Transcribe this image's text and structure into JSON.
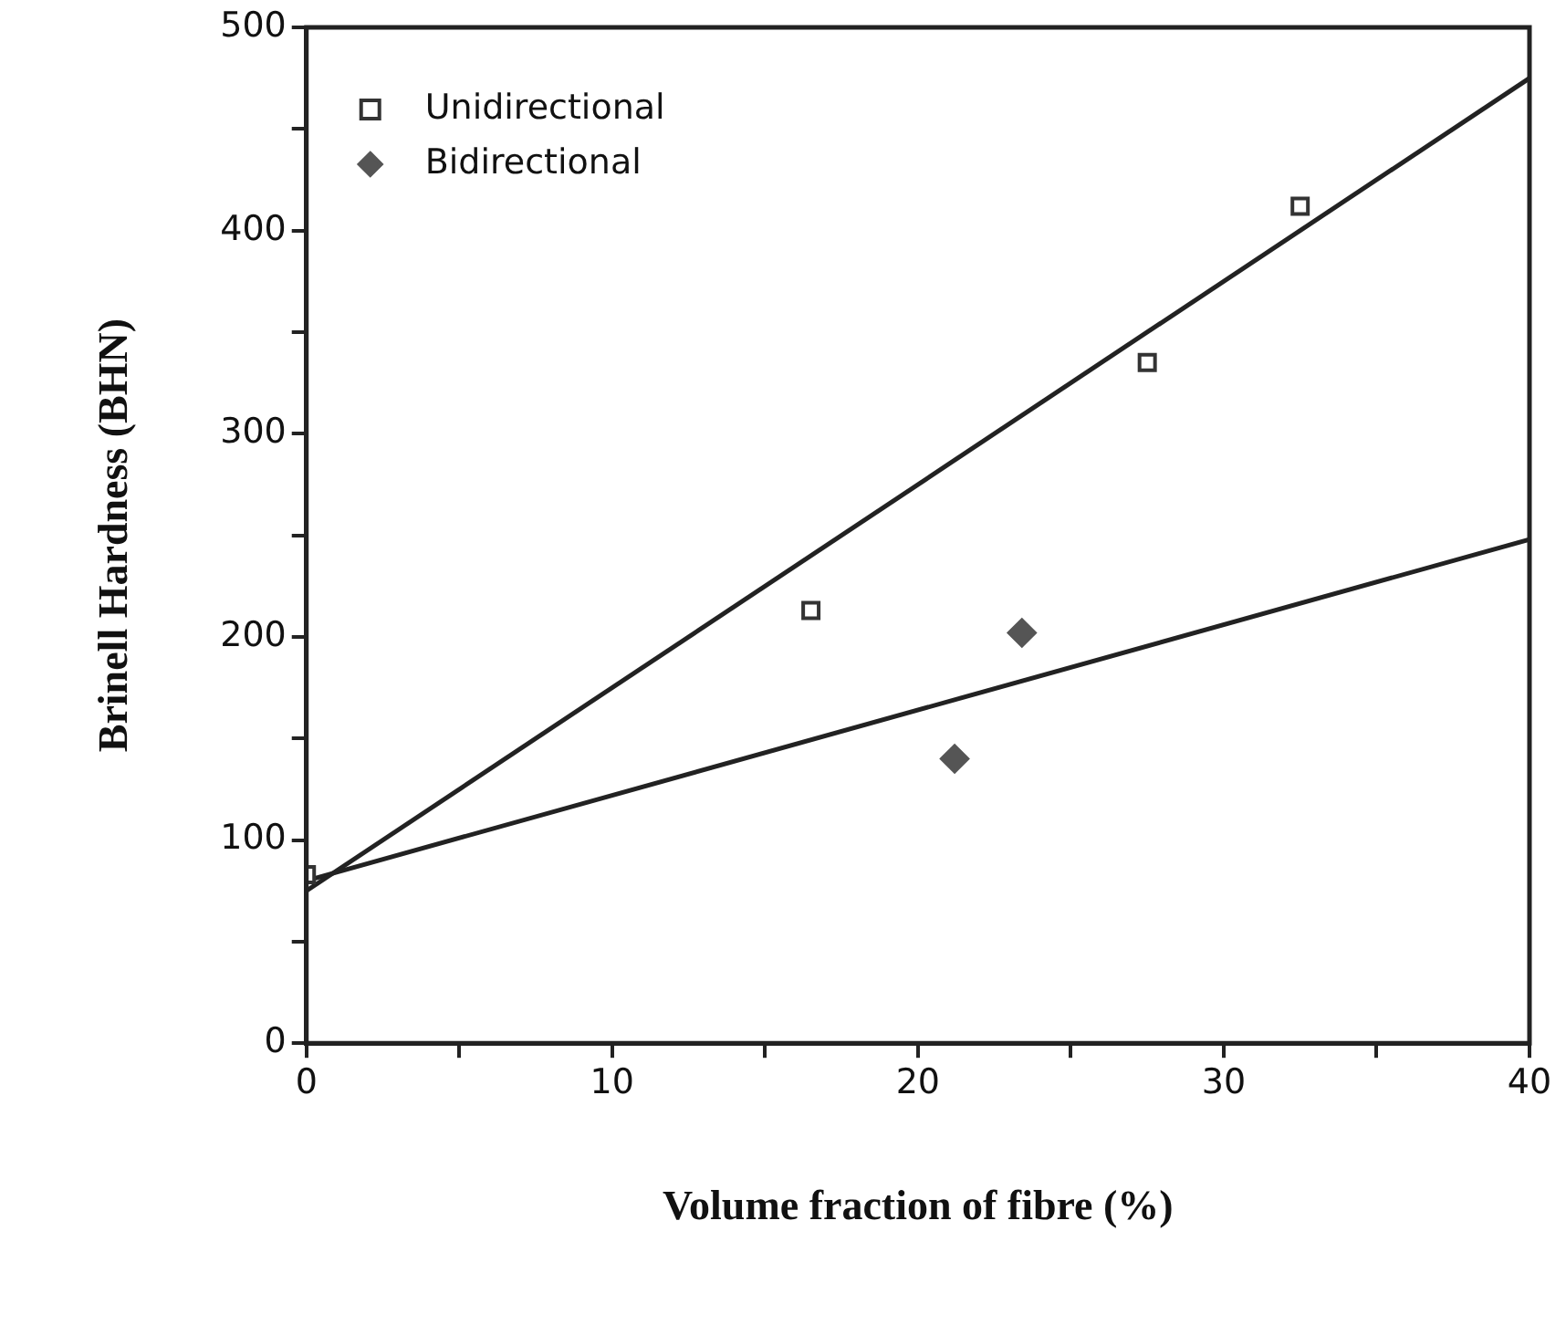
{
  "chart_data": {
    "type": "scatter",
    "xlabel": "Volume fraction of fibre (%)",
    "ylabel": "Brinell Hardness (BHN)",
    "xlim": [
      0,
      40
    ],
    "ylim": [
      0,
      500
    ],
    "xticks": [
      0,
      {
        "value": 5,
        "label": null
      },
      10,
      {
        "value": 15,
        "label": null
      },
      20,
      {
        "value": 25,
        "label": null
      },
      30,
      {
        "value": 35,
        "label": null
      },
      40
    ],
    "yticks": [
      0,
      {
        "value": 50,
        "label": null
      },
      100,
      {
        "value": 150,
        "label": null
      },
      200,
      {
        "value": 250,
        "label": null
      },
      300,
      {
        "value": 350,
        "label": null
      },
      400,
      {
        "value": 450,
        "label": null
      },
      500
    ],
    "grid": false,
    "legend": "top left",
    "series": [
      {
        "name": "Unidirectional",
        "type": "scatter",
        "marker": "square",
        "color": "#333333",
        "x": [
          0,
          16.5,
          27.5,
          32.5
        ],
        "values": [
          83,
          213,
          335,
          412
        ]
      },
      {
        "name": "Bidirectional",
        "type": "scatter",
        "marker": "diamond",
        "color": "#555555",
        "x": [
          21.2,
          23.4
        ],
        "values": [
          140,
          202
        ]
      },
      {
        "type": "line",
        "marker": "none",
        "color": "#222222",
        "x": [
          0,
          40
        ],
        "values": [
          75,
          475
        ]
      },
      {
        "type": "line",
        "marker": "none",
        "color": "#222222",
        "x": [
          0,
          40
        ],
        "values": [
          80,
          248
        ]
      }
    ]
  }
}
